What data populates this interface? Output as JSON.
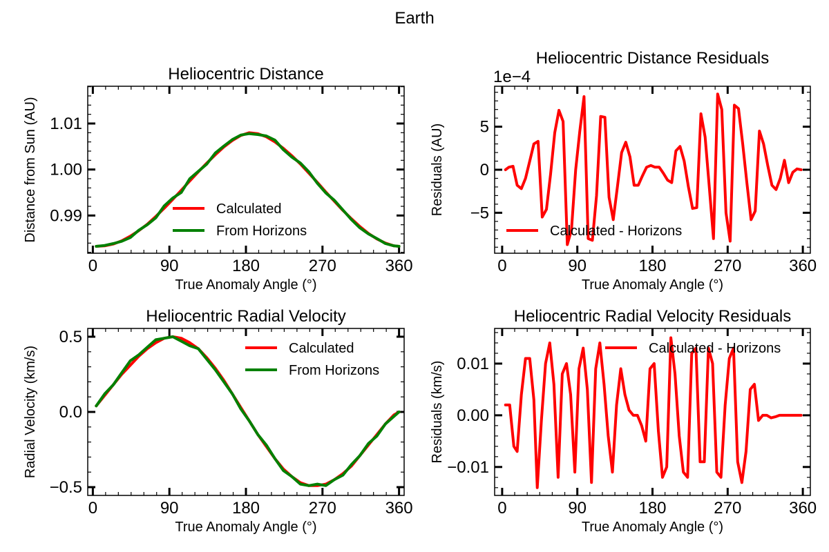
{
  "figure_title": "Earth",
  "colors": {
    "calculated": "#ff0000",
    "horizons": "#008000",
    "residual": "#ff0000"
  },
  "chart_data": [
    {
      "id": "distance",
      "type": "line",
      "title": "Heliocentric Distance",
      "xlabel": "True Anomaly Angle (°)",
      "ylabel": "Distance from Sun (AU)",
      "xlim": [
        -6,
        366
      ],
      "ylim": [
        0.9818,
        1.0181
      ],
      "xticks": [
        0,
        90,
        180,
        270,
        360
      ],
      "xtick_labels": [
        "0",
        "90",
        "180",
        "270",
        "360"
      ],
      "yticks": [
        0.99,
        1.0,
        1.01
      ],
      "ytick_labels": [
        "0.99",
        "1.00",
        "1.01"
      ],
      "legend_position": "lower-center",
      "series": [
        {
          "name": "Calculated",
          "color": "#ff0000",
          "x": [
            4,
            14,
            24,
            34,
            44,
            54,
            64,
            74,
            84,
            94,
            104,
            114,
            124,
            134,
            144,
            154,
            164,
            174,
            184,
            194,
            204,
            214,
            224,
            234,
            244,
            254,
            264,
            274,
            284,
            294,
            304,
            314,
            324,
            334,
            344,
            354,
            360
          ],
          "y": [
            0.9833,
            0.9834,
            0.9838,
            0.9845,
            0.9855,
            0.9867,
            0.9881,
            0.9898,
            0.9916,
            0.9935,
            0.9955,
            0.9975,
            0.9995,
            1.0014,
            1.0032,
            1.0049,
            1.0063,
            1.0074,
            1.008,
            1.0078,
            1.0071,
            1.006,
            1.0046,
            1.003,
            1.0012,
            0.9992,
            0.9972,
            0.9951,
            0.9931,
            0.9911,
            0.9893,
            0.9876,
            0.9861,
            0.9849,
            0.984,
            0.9834,
            0.9833
          ]
        },
        {
          "name": "From Horizons",
          "color": "#008000",
          "x": [
            4,
            14,
            24,
            34,
            44,
            54,
            64,
            74,
            84,
            94,
            104,
            114,
            124,
            134,
            144,
            154,
            164,
            174,
            184,
            194,
            204,
            214,
            224,
            234,
            244,
            254,
            264,
            274,
            284,
            294,
            304,
            314,
            324,
            334,
            344,
            354,
            360
          ],
          "y": [
            0.9833,
            0.9835,
            0.9839,
            0.9844,
            0.9852,
            0.9868,
            0.988,
            0.9895,
            0.9921,
            0.9938,
            0.995,
            0.998,
            0.9996,
            1.0012,
            1.0036,
            1.0051,
            1.0065,
            1.0075,
            1.0078,
            1.0076,
            1.0073,
            1.0064,
            1.0043,
            1.0027,
            1.0014,
            0.9995,
            0.997,
            0.9949,
            0.9933,
            0.9912,
            0.9891,
            0.9873,
            0.986,
            0.985,
            0.9839,
            0.9834,
            0.9833
          ]
        }
      ]
    },
    {
      "id": "distance-residuals",
      "type": "line",
      "title": "Heliocentric Distance Residuals",
      "offset_text": "1e−4",
      "xlabel": "True Anomaly Angle (°)",
      "ylabel": "Residuals (AU)",
      "xlim": [
        -9,
        369
      ],
      "ylim": [
        -9.7,
        9.7
      ],
      "xticks": [
        0,
        90,
        180,
        270,
        360
      ],
      "xtick_labels": [
        "0",
        "90",
        "180",
        "270",
        "360"
      ],
      "yticks": [
        -5,
        0,
        5
      ],
      "ytick_labels": [
        "−5",
        "0",
        "5"
      ],
      "legend_position": "lower-left",
      "series": [
        {
          "name": "Calculated - Horizons",
          "color": "#ff0000",
          "x": [
            4,
            8,
            13,
            18,
            23,
            28,
            33,
            38,
            43,
            48,
            53,
            58,
            63,
            68,
            73,
            78,
            83,
            88,
            93,
            98,
            103,
            108,
            113,
            118,
            123,
            128,
            133,
            138,
            143,
            148,
            153,
            158,
            163,
            168,
            173,
            178,
            183,
            188,
            193,
            198,
            203,
            208,
            213,
            218,
            223,
            228,
            233,
            238,
            243,
            248,
            253,
            258,
            263,
            268,
            273,
            278,
            283,
            288,
            293,
            298,
            303,
            308,
            313,
            318,
            323,
            328,
            333,
            338,
            343,
            348,
            353,
            358
          ],
          "y": [
            0,
            0.3,
            0.4,
            -1.8,
            -2.2,
            -1.0,
            1.0,
            3.0,
            3.3,
            -5.5,
            -4.6,
            -0.5,
            4.3,
            6.9,
            5.6,
            -8.7,
            -7.0,
            0.0,
            4.5,
            8.5,
            -8.0,
            -8.2,
            -3.0,
            6.2,
            6.1,
            -3.2,
            -5.8,
            -2.0,
            2.0,
            3.2,
            1.5,
            -1.8,
            -1.8,
            -0.7,
            0.3,
            0.5,
            0.3,
            0.3,
            -0.4,
            -1.2,
            -1.5,
            2.2,
            2.7,
            1.0,
            -2.0,
            -4.5,
            -4.4,
            6.5,
            3.8,
            -2.0,
            -8.0,
            8.8,
            7.0,
            -5.0,
            -8.3,
            7.5,
            7.1,
            3.0,
            -1.5,
            -5.8,
            -4.8,
            4.5,
            3.0,
            0.5,
            -1.8,
            -2.3,
            -1.0,
            1.1,
            -1.5,
            -0.3,
            0.1,
            0.0
          ]
        }
      ]
    },
    {
      "id": "radial-velocity",
      "type": "line",
      "title": "Heliocentric Radial Velocity",
      "xlabel": "True Anomaly Angle (°)",
      "ylabel": "Radial Velocity (km/s)",
      "xlim": [
        -6,
        366
      ],
      "ylim": [
        -0.555,
        0.555
      ],
      "xticks": [
        0,
        90,
        180,
        270,
        360
      ],
      "xtick_labels": [
        "0",
        "90",
        "180",
        "270",
        "360"
      ],
      "yticks": [
        -0.5,
        0.0,
        0.5
      ],
      "ytick_labels": [
        "−0.5",
        "0.0",
        "0.5"
      ],
      "legend_position": "upper-right",
      "series": [
        {
          "name": "Calculated",
          "color": "#ff0000",
          "x": [
            4,
            14,
            24,
            34,
            44,
            54,
            64,
            74,
            84,
            94,
            104,
            114,
            124,
            134,
            144,
            154,
            164,
            174,
            184,
            194,
            204,
            214,
            224,
            234,
            244,
            254,
            264,
            274,
            284,
            294,
            304,
            314,
            324,
            334,
            344,
            354,
            360
          ],
          "y": [
            0.04,
            0.11,
            0.18,
            0.25,
            0.31,
            0.37,
            0.42,
            0.46,
            0.49,
            0.5,
            0.49,
            0.46,
            0.42,
            0.36,
            0.29,
            0.21,
            0.12,
            0.03,
            -0.06,
            -0.15,
            -0.23,
            -0.31,
            -0.38,
            -0.43,
            -0.47,
            -0.49,
            -0.49,
            -0.48,
            -0.45,
            -0.41,
            -0.36,
            -0.29,
            -0.22,
            -0.15,
            -0.08,
            -0.02,
            0.0
          ]
        },
        {
          "name": "From Horizons",
          "color": "#008000",
          "x": [
            4,
            14,
            24,
            34,
            44,
            54,
            64,
            74,
            84,
            94,
            104,
            114,
            124,
            134,
            144,
            154,
            164,
            174,
            184,
            194,
            204,
            214,
            224,
            234,
            244,
            254,
            264,
            274,
            284,
            294,
            304,
            314,
            324,
            334,
            344,
            354,
            360
          ],
          "y": [
            0.04,
            0.12,
            0.18,
            0.26,
            0.34,
            0.38,
            0.43,
            0.48,
            0.49,
            0.5,
            0.47,
            0.44,
            0.42,
            0.35,
            0.28,
            0.2,
            0.12,
            0.02,
            -0.06,
            -0.15,
            -0.22,
            -0.31,
            -0.39,
            -0.43,
            -0.48,
            -0.49,
            -0.48,
            -0.49,
            -0.45,
            -0.42,
            -0.35,
            -0.29,
            -0.21,
            -0.16,
            -0.08,
            -0.03,
            0.0
          ]
        }
      ]
    },
    {
      "id": "radial-velocity-residuals",
      "type": "line",
      "title": "Heliocentric Radial Velocity Residuals",
      "xlabel": "True Anomaly Angle (°)",
      "ylabel": "Residuals (km/s)",
      "xlim": [
        -9,
        369
      ],
      "ylim": [
        -0.0155,
        0.0168
      ],
      "xticks": [
        0,
        90,
        180,
        270,
        360
      ],
      "xtick_labels": [
        "0",
        "90",
        "180",
        "270",
        "360"
      ],
      "yticks": [
        -0.01,
        0.0,
        0.01
      ],
      "ytick_labels": [
        "−0.01",
        "0.00",
        "0.01"
      ],
      "legend_position": "upper-right",
      "series": [
        {
          "name": "Calculated - Horizons",
          "color": "#ff0000",
          "x": [
            4,
            9,
            14,
            18,
            23,
            28,
            33,
            38,
            42,
            47,
            52,
            57,
            62,
            67,
            72,
            77,
            82,
            87,
            92,
            97,
            102,
            107,
            112,
            117,
            122,
            127,
            132,
            137,
            142,
            147,
            152,
            157,
            162,
            167,
            172,
            177,
            182,
            187,
            192,
            197,
            202,
            207,
            212,
            217,
            222,
            227,
            232,
            237,
            242,
            247,
            252,
            257,
            262,
            267,
            272,
            277,
            282,
            287,
            292,
            297,
            302,
            307,
            312,
            317,
            322,
            327,
            332,
            337,
            342,
            347,
            352,
            358
          ],
          "y": [
            0.002,
            0.002,
            -0.006,
            -0.007,
            0.004,
            0.011,
            0.011,
            0.003,
            -0.014,
            -0.001,
            0.01,
            0.014,
            0.006,
            -0.012,
            0.008,
            0.01,
            0.004,
            -0.011,
            0.009,
            0.013,
            0.005,
            -0.013,
            0.009,
            0.014,
            0.006,
            -0.004,
            -0.011,
            0.002,
            0.009,
            0.004,
            0.001,
            0.0,
            0.0,
            -0.002,
            -0.005,
            0.009,
            0.01,
            -0.003,
            -0.012,
            -0.01,
            0.015,
            0.008,
            -0.004,
            -0.011,
            -0.012,
            0.012,
            0.013,
            -0.009,
            -0.009,
            0.013,
            0.01,
            -0.011,
            -0.012,
            0.002,
            0.011,
            0.013,
            -0.009,
            -0.013,
            -0.007,
            0.005,
            0.006,
            -0.001,
            0.0,
            0.0,
            -0.0005,
            -0.0003,
            0.0,
            0.0,
            0.0,
            0.0,
            0.0,
            0.0
          ]
        }
      ]
    }
  ]
}
